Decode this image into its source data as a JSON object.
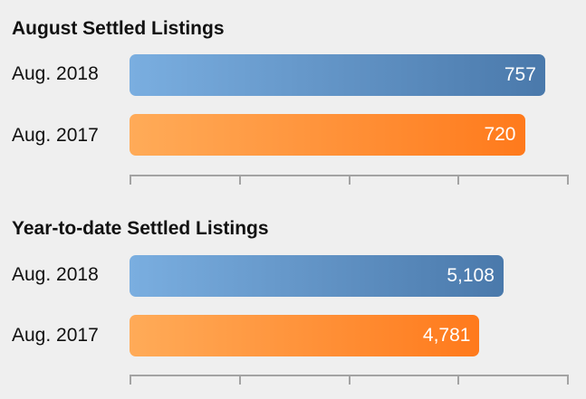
{
  "chart_data": [
    {
      "type": "bar",
      "orientation": "horizontal",
      "title": "August Settled Listings",
      "categories": [
        "Aug. 2018",
        "Aug. 2017"
      ],
      "values": [
        757,
        720
      ],
      "value_labels": [
        "757",
        "720"
      ],
      "xlim": [
        0,
        800
      ],
      "grid": false,
      "colors": [
        "#5b8fc6",
        "#ff8c32"
      ]
    },
    {
      "type": "bar",
      "orientation": "horizontal",
      "title": "Year-to-date Settled Listings",
      "categories": [
        "Aug. 2018",
        "Aug. 2017"
      ],
      "values": [
        5108,
        4781
      ],
      "value_labels": [
        "5,108",
        "4,781"
      ],
      "xlim": [
        0,
        6000
      ],
      "grid": false,
      "colors": [
        "#5b8fc6",
        "#ff8c32"
      ]
    }
  ]
}
